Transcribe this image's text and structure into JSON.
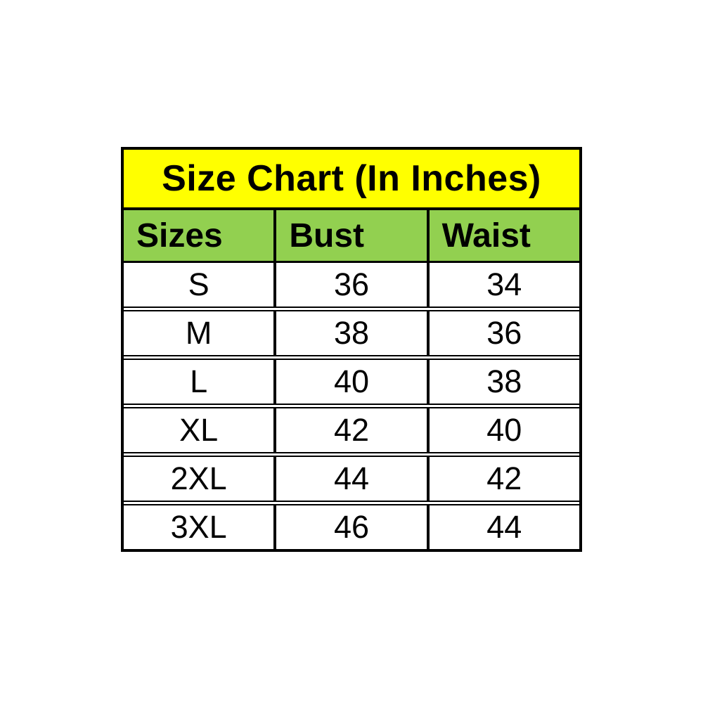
{
  "colors": {
    "page_bg": "#ffffff",
    "title_bg": "#ffff00",
    "header_bg": "#92d050",
    "border": "#000000",
    "text": "#000000"
  },
  "chart_data": {
    "type": "table",
    "title": "Size Chart (In Inches)",
    "columns": [
      "Sizes",
      "Bust",
      "Waist"
    ],
    "rows": [
      [
        "S",
        "36",
        "34"
      ],
      [
        "M",
        "38",
        "36"
      ],
      [
        "L",
        "40",
        "38"
      ],
      [
        "XL",
        "42",
        "40"
      ],
      [
        "2XL",
        "44",
        "42"
      ],
      [
        "3XL",
        "46",
        "44"
      ]
    ]
  }
}
